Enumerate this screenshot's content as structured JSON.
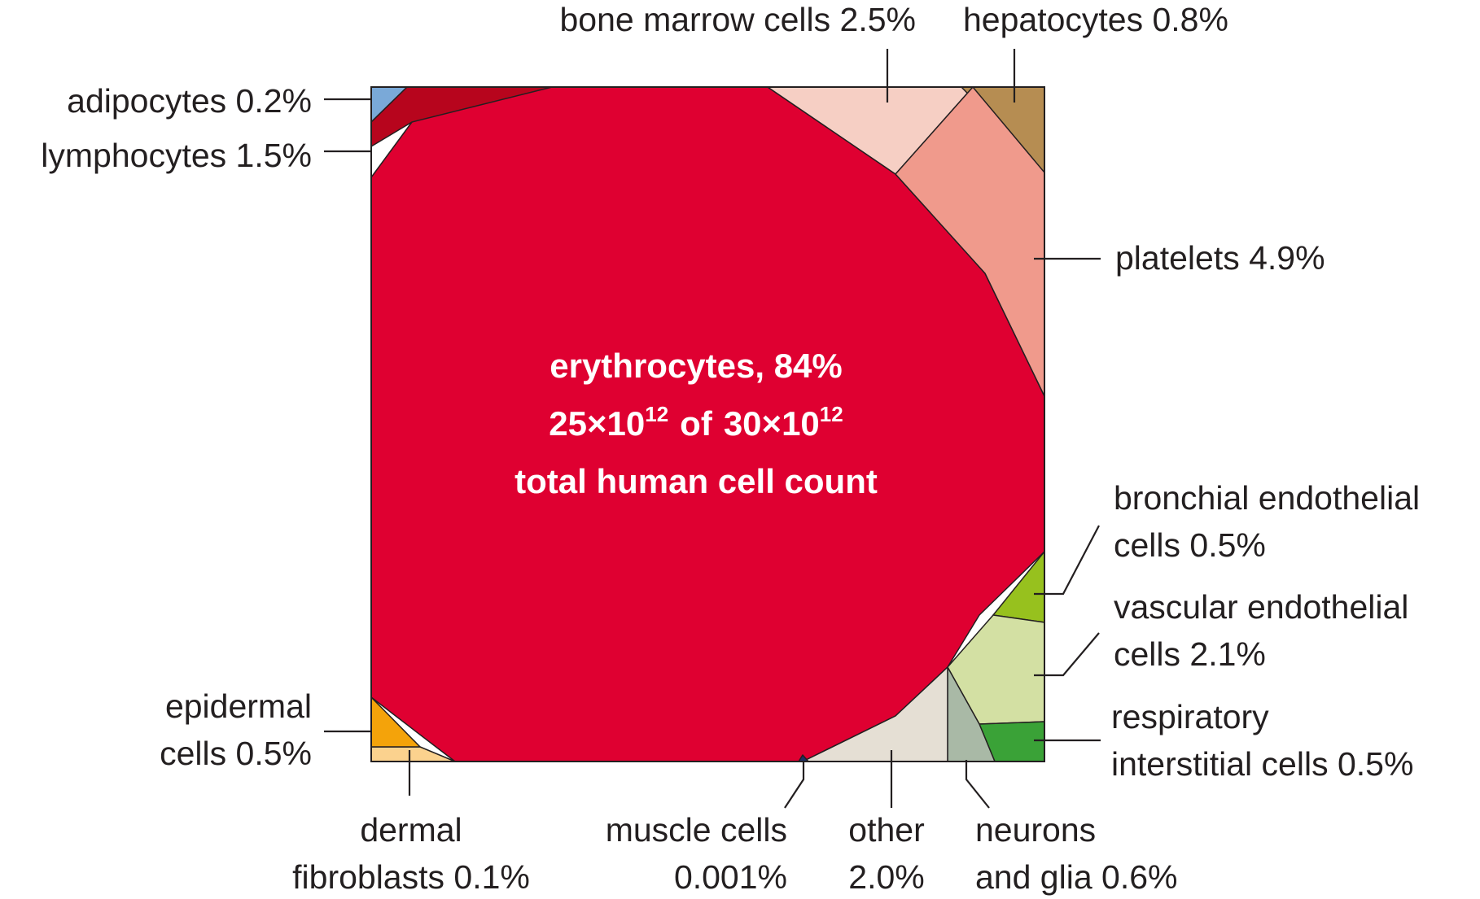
{
  "chart_data": {
    "type": "voronoi-treemap",
    "colors": {
      "erythrocytes": "#df0031",
      "lymphocytes": "#b7051d",
      "adipocytes": "#7aa9d8",
      "bone_marrow": "#f6cfc4",
      "hepatocytes": "#b68d52",
      "platelets": "#f09a8c",
      "bronchial": "#97c11e",
      "vascular": "#d3e0a3",
      "respiratory": "#3aa237",
      "neurons": "#a9b9a6",
      "other": "#e5dfd4",
      "muscle": "#1e2f66",
      "dermal": "#fbd28e",
      "epidermal": "#f4a30a"
    },
    "center": {
      "line1": "erythrocytes, 84%",
      "line2_a": "25×10",
      "line2_sup1": "12",
      "line2_of": "of",
      "line2_b": "30×10",
      "line2_sup2": "12",
      "line3": "total human cell count"
    },
    "cells": [
      {
        "name": "erythrocytes",
        "percent": 84,
        "label_lines": [
          "erythrocytes, 84%"
        ],
        "color_key": "erythrocytes"
      },
      {
        "name": "adipocytes",
        "percent": 0.2,
        "label_lines": [
          "adipocytes 0.2%"
        ],
        "color_key": "adipocytes"
      },
      {
        "name": "lymphocytes",
        "percent": 1.5,
        "label_lines": [
          "lymphocytes 1.5%"
        ],
        "color_key": "lymphocytes"
      },
      {
        "name": "bone marrow cells",
        "percent": 2.5,
        "label_lines": [
          "bone marrow cells 2.5%"
        ],
        "color_key": "bone_marrow"
      },
      {
        "name": "hepatocytes",
        "percent": 0.8,
        "label_lines": [
          "hepatocytes 0.8%"
        ],
        "color_key": "hepatocytes"
      },
      {
        "name": "platelets",
        "percent": 4.9,
        "label_lines": [
          "platelets 4.9%"
        ],
        "color_key": "platelets"
      },
      {
        "name": "bronchial endothelial cells",
        "percent": 0.5,
        "label_lines": [
          "bronchial endothelial",
          "cells 0.5%"
        ],
        "color_key": "bronchial"
      },
      {
        "name": "vascular endothelial cells",
        "percent": 2.1,
        "label_lines": [
          "vascular endothelial",
          "cells 2.1%"
        ],
        "color_key": "vascular"
      },
      {
        "name": "respiratory interstitial cells",
        "percent": 0.5,
        "label_lines": [
          "respiratory",
          "interstitial cells 0.5%"
        ],
        "color_key": "respiratory"
      },
      {
        "name": "neurons and glia",
        "percent": 0.6,
        "label_lines": [
          "neurons",
          "and glia 0.6%"
        ],
        "color_key": "neurons"
      },
      {
        "name": "other",
        "percent": 2.0,
        "label_lines": [
          "other",
          "2.0%"
        ],
        "color_key": "other"
      },
      {
        "name": "muscle cells",
        "percent": 0.001,
        "label_lines": [
          "muscle cells",
          "0.001%"
        ],
        "color_key": "muscle"
      },
      {
        "name": "dermal fibroblasts",
        "percent": 0.1,
        "label_lines": [
          "dermal",
          "fibroblasts 0.1%"
        ],
        "color_key": "dermal"
      },
      {
        "name": "epidermal cells",
        "percent": 0.5,
        "label_lines": [
          "epidermal",
          "cells 0.5%"
        ],
        "color_key": "epidermal"
      }
    ]
  }
}
